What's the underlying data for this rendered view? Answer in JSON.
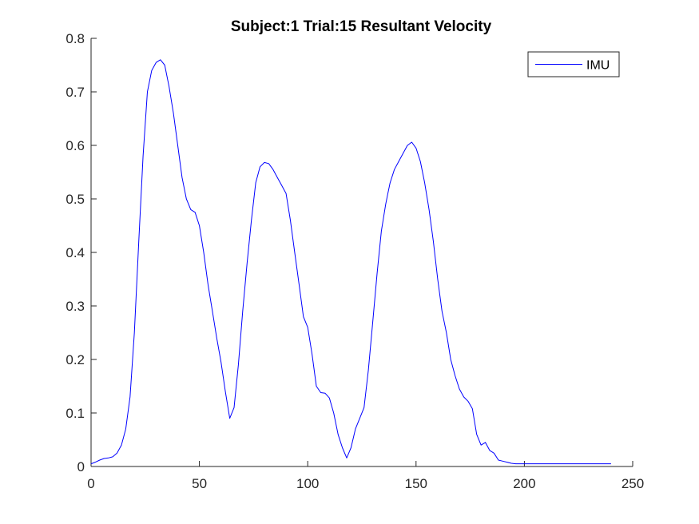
{
  "chart_data": {
    "type": "line",
    "title": "Subject:1 Trial:15 Resultant Velocity",
    "xlabel": "",
    "ylabel": "",
    "xlim": [
      0,
      250
    ],
    "ylim": [
      0,
      0.8
    ],
    "xticks": [
      0,
      50,
      100,
      150,
      200,
      250
    ],
    "yticks": [
      0,
      0.1,
      0.2,
      0.3,
      0.4,
      0.5,
      0.6,
      0.7,
      0.8
    ],
    "xtick_labels": [
      "0",
      "50",
      "100",
      "150",
      "200",
      "250"
    ],
    "ytick_labels": [
      "0",
      "0.1",
      "0.2",
      "0.3",
      "0.4",
      "0.5",
      "0.6",
      "0.7",
      "0.8"
    ],
    "grid": false,
    "legend_position": "top-right",
    "series": [
      {
        "name": "IMU",
        "color": "#0000ff",
        "x": [
          0,
          2,
          4,
          6,
          8,
          10,
          12,
          14,
          16,
          18,
          20,
          22,
          24,
          26,
          28,
          30,
          32,
          34,
          36,
          38,
          40,
          42,
          44,
          46,
          48,
          50,
          52,
          54,
          56,
          58,
          60,
          62,
          64,
          66,
          68,
          70,
          72,
          74,
          76,
          78,
          80,
          82,
          84,
          86,
          88,
          90,
          92,
          94,
          96,
          98,
          100,
          102,
          104,
          106,
          108,
          110,
          112,
          114,
          116,
          118,
          120,
          122,
          124,
          126,
          128,
          130,
          132,
          134,
          136,
          137,
          138,
          140,
          142,
          144,
          146,
          148,
          150,
          152,
          154,
          156,
          158,
          160,
          162,
          164,
          166,
          168,
          170,
          172,
          174,
          176,
          178,
          180,
          182,
          184,
          186,
          188,
          190,
          192,
          194,
          196,
          198,
          200,
          202,
          204,
          206,
          208,
          210,
          212,
          214,
          216,
          218,
          220,
          222,
          223,
          224,
          226,
          228,
          230,
          232,
          234,
          236,
          238,
          240
        ],
        "y": [
          0.005,
          0.008,
          0.012,
          0.015,
          0.016,
          0.018,
          0.025,
          0.04,
          0.07,
          0.13,
          0.25,
          0.42,
          0.58,
          0.7,
          0.74,
          0.755,
          0.76,
          0.75,
          0.71,
          0.66,
          0.6,
          0.54,
          0.5,
          0.48,
          0.475,
          0.45,
          0.4,
          0.34,
          0.29,
          0.24,
          0.195,
          0.14,
          0.09,
          0.11,
          0.19,
          0.29,
          0.38,
          0.46,
          0.53,
          0.56,
          0.568,
          0.566,
          0.555,
          0.54,
          0.525,
          0.51,
          0.46,
          0.4,
          0.34,
          0.28,
          0.26,
          0.21,
          0.15,
          0.138,
          0.137,
          0.128,
          0.1,
          0.06,
          0.035,
          0.016,
          0.035,
          0.07,
          0.09,
          0.11,
          0.18,
          0.27,
          0.36,
          0.44,
          0.49,
          0.51,
          0.53,
          0.555,
          0.57,
          0.585,
          0.6,
          0.606,
          0.595,
          0.57,
          0.53,
          0.48,
          0.42,
          0.35,
          0.29,
          0.25,
          0.2,
          0.17,
          0.145,
          0.13,
          0.122,
          0.108,
          0.06,
          0.04,
          0.045,
          0.03,
          0.025,
          0.012,
          0.01,
          0.008,
          0.006,
          0.005,
          0.005,
          0.005,
          0.005,
          0.005,
          0.005,
          0.005,
          0.005,
          0.005,
          0.005,
          0.005,
          0.005,
          0.005,
          0.005,
          0.005,
          0.005,
          0.005,
          0.005,
          0.005,
          0.005,
          0.005,
          0.005,
          0.005,
          0.005
        ]
      }
    ]
  }
}
